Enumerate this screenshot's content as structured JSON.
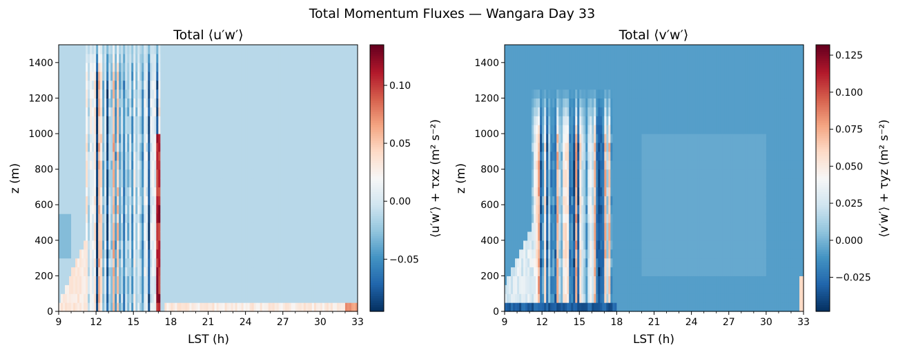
{
  "figure": {
    "suptitle": "Total Momentum Fluxes — Wangara Day 33"
  },
  "chart_data": [
    {
      "type": "heatmap",
      "title": "Total ⟨u′w′⟩",
      "xlabel": "LST (h)",
      "ylabel": "z (m)",
      "xlim": [
        9,
        33
      ],
      "ylim": [
        0,
        1500
      ],
      "xticks": [
        "9",
        "12",
        "15",
        "18",
        "21",
        "24",
        "27",
        "30",
        "33"
      ],
      "xtick_values": [
        9,
        12,
        15,
        18,
        21,
        24,
        27,
        30,
        33
      ],
      "yticks": [
        "0",
        "200",
        "400",
        "600",
        "800",
        "1000",
        "1200",
        "1400"
      ],
      "ytick_values": [
        0,
        200,
        400,
        600,
        800,
        1000,
        1200,
        1400
      ],
      "colormap": "RdBu_r",
      "colorbar": {
        "label": "⟨u′w′⟩ + τxz (m² s⁻²)",
        "vmin": -0.095,
        "vmax": 0.135,
        "ticks": [
          "−0.05",
          "0.00",
          "0.05",
          "0.10"
        ],
        "tick_values": [
          -0.05,
          0.0,
          0.05,
          0.1
        ]
      },
      "background_value": -0.012,
      "features": [
        {
          "description_value": "alternating updraft bands",
          "t_range": [
            11.2,
            17.2
          ],
          "z_top": 1500,
          "values": [
            -0.08,
            0.04
          ]
        },
        {
          "description_value": "strong positive streak",
          "t": 17.0,
          "z_range": [
            0,
            1000
          ],
          "value": 0.13
        },
        {
          "description_value": "surface layer positive",
          "t_range": [
            9,
            33
          ],
          "z_range": [
            0,
            60
          ],
          "value": 0.04
        }
      ]
    },
    {
      "type": "heatmap",
      "title": "Total ⟨v′w′⟩",
      "xlabel": "LST (h)",
      "ylabel": "z (m)",
      "xlim": [
        9,
        33
      ],
      "ylim": [
        0,
        1500
      ],
      "xticks": [
        "9",
        "12",
        "15",
        "18",
        "21",
        "24",
        "27",
        "30",
        "33"
      ],
      "xtick_values": [
        9,
        12,
        15,
        18,
        21,
        24,
        27,
        30,
        33
      ],
      "yticks": [
        "0",
        "200",
        "400",
        "600",
        "800",
        "1000",
        "1200",
        "1400"
      ],
      "ytick_values": [
        0,
        200,
        400,
        600,
        800,
        1000,
        1200,
        1400
      ],
      "colormap": "RdBu_r",
      "colorbar": {
        "label": "⟨v′w′⟩ + τyz (m² s⁻²)",
        "vmin": -0.048,
        "vmax": 0.132,
        "ticks": [
          "−0.025",
          "0.000",
          "0.025",
          "0.050",
          "0.075",
          "0.100",
          "0.125"
        ],
        "tick_values": [
          -0.025,
          0.0,
          0.025,
          0.05,
          0.075,
          0.1,
          0.125
        ]
      },
      "background_value": -0.008,
      "features": [
        {
          "description_value": "positive convective bands",
          "t_range": [
            11.2,
            17.6
          ],
          "z_top": 1000,
          "values": [
            -0.03,
            0.11
          ]
        },
        {
          "description_value": "negative near-surface layer",
          "t_range": [
            9,
            18
          ],
          "z_range": [
            0,
            60
          ],
          "value": -0.04
        },
        {
          "description_value": "late positive surface bump",
          "t": 33,
          "z_range": [
            0,
            200
          ],
          "value": 0.06
        }
      ]
    }
  ]
}
